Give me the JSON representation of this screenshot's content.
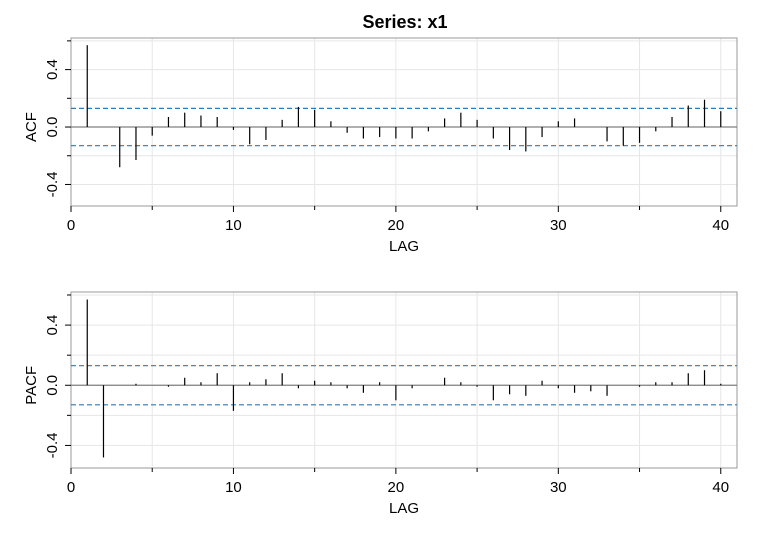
{
  "figure_title": "Series:  x1",
  "chart_data": [
    {
      "type": "bar",
      "name": "ACF",
      "xlabel": "LAG",
      "ylabel": "ACF",
      "xlim": [
        0,
        41
      ],
      "ylim": [
        -0.55,
        0.62
      ],
      "xticks": [
        0,
        10,
        20,
        30,
        40
      ],
      "xtick_labels": [
        "0",
        "10",
        "20",
        "30",
        "40"
      ],
      "yticks": [
        -0.4,
        0.0,
        0.4
      ],
      "ytick_labels": [
        "-0.4",
        "0.0",
        "0.4"
      ],
      "grid": true,
      "conf_bound": 0.13,
      "colors": {
        "bars": "#000000",
        "bounds": "#2b7bba",
        "grid": "#e6e6e6",
        "frame": "#999999",
        "zero_line": "#808080"
      },
      "lags": [
        1,
        2,
        3,
        4,
        5,
        6,
        7,
        8,
        9,
        10,
        11,
        12,
        13,
        14,
        15,
        16,
        17,
        18,
        19,
        20,
        21,
        22,
        23,
        24,
        25,
        26,
        27,
        28,
        29,
        30,
        31,
        32,
        33,
        34,
        35,
        36,
        37,
        38,
        39,
        40
      ],
      "values": [
        0.57,
        0.0,
        -0.28,
        -0.23,
        -0.06,
        0.07,
        0.1,
        0.08,
        0.07,
        -0.02,
        -0.12,
        -0.09,
        0.05,
        0.14,
        0.12,
        0.04,
        -0.04,
        -0.08,
        -0.07,
        -0.08,
        -0.08,
        -0.03,
        0.06,
        0.1,
        0.05,
        -0.08,
        -0.16,
        -0.17,
        -0.07,
        0.04,
        0.06,
        0.0,
        -0.1,
        -0.13,
        -0.11,
        -0.03,
        0.07,
        0.15,
        0.19,
        0.11
      ]
    },
    {
      "type": "bar",
      "name": "PACF",
      "xlabel": "LAG",
      "ylabel": "PACF",
      "xlim": [
        0,
        41
      ],
      "ylim": [
        -0.55,
        0.62
      ],
      "xticks": [
        0,
        10,
        20,
        30,
        40
      ],
      "xtick_labels": [
        "0",
        "10",
        "20",
        "30",
        "40"
      ],
      "yticks": [
        -0.4,
        0.0,
        0.4
      ],
      "ytick_labels": [
        "-0.4",
        "0.0",
        "0.4"
      ],
      "grid": true,
      "conf_bound": 0.13,
      "colors": {
        "bars": "#000000",
        "bounds": "#2b7bba",
        "grid": "#e6e6e6",
        "frame": "#999999",
        "zero_line": "#808080"
      },
      "lags": [
        1,
        2,
        3,
        4,
        5,
        6,
        7,
        8,
        9,
        10,
        11,
        12,
        13,
        14,
        15,
        16,
        17,
        18,
        19,
        20,
        21,
        22,
        23,
        24,
        25,
        26,
        27,
        28,
        29,
        30,
        31,
        32,
        33,
        34,
        35,
        36,
        37,
        38,
        39,
        40
      ],
      "values": [
        0.57,
        -0.48,
        0.0,
        0.01,
        0.0,
        -0.01,
        0.05,
        0.02,
        0.08,
        -0.17,
        0.02,
        0.04,
        0.08,
        -0.02,
        0.03,
        0.02,
        -0.02,
        -0.05,
        0.02,
        -0.1,
        -0.02,
        0.0,
        0.05,
        0.02,
        -0.01,
        -0.1,
        -0.06,
        -0.07,
        0.03,
        -0.02,
        -0.05,
        -0.04,
        -0.07,
        0.0,
        -0.01,
        0.02,
        0.02,
        0.08,
        0.1,
        0.01
      ]
    }
  ]
}
